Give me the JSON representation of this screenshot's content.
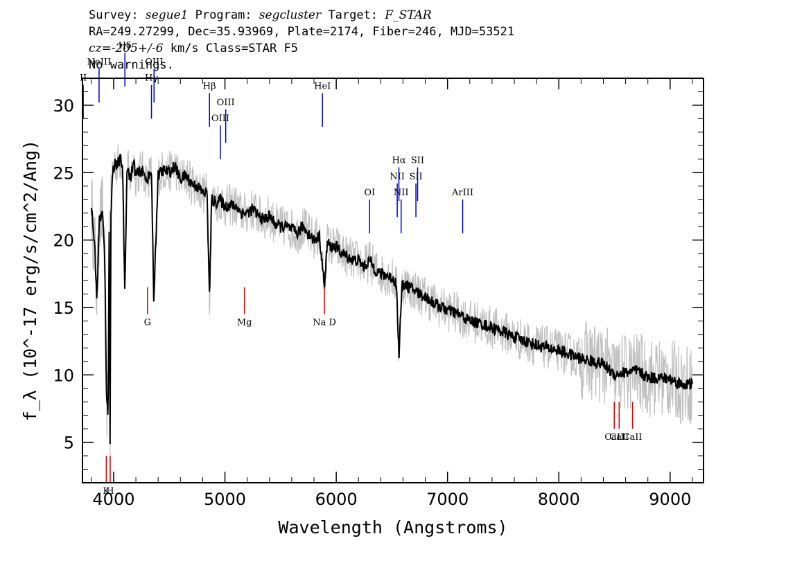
{
  "header": {
    "survey_label": "Survey:",
    "survey": "segue1",
    "program_label": "Program:",
    "program": "segcluster",
    "target_label": "Target:",
    "target": "F_STAR",
    "line2": "RA=249.27299, Dec=35.93969, Plate=2174, Fiber=246, MJD=53521",
    "cz_label": "cz=",
    "cz_value": "-205+/-6",
    "cz_unit_class": "km/s Class=STAR F5",
    "line4": "No warnings."
  },
  "chart_data": {
    "type": "line",
    "xlabel": "Wavelength (Angstroms)",
    "ylabel": "f_λ (10^-17 erg/s/cm^2/Ang)",
    "xlim": [
      3720,
      9300
    ],
    "ylim": [
      2,
      32
    ],
    "x_ticks": [
      4000,
      5000,
      6000,
      7000,
      8000,
      9000
    ],
    "y_ticks": [
      5,
      10,
      15,
      20,
      25,
      30
    ],
    "colors": {
      "spectrum": "#000000",
      "error_band": "#c0c0c0",
      "emission": "#0000cc",
      "absorption": "#dd0000"
    },
    "series": [
      {
        "x": [
          3800,
          3830,
          3850,
          3870,
          3900,
          3920,
          3935,
          3950,
          3960,
          3968,
          3975,
          3990,
          4010,
          4030,
          4060,
          4080,
          4101,
          4120,
          4150,
          4180,
          4200,
          4250,
          4300,
          4340,
          4360,
          4400,
          4450,
          4500,
          4550,
          4600,
          4650,
          4700,
          4750,
          4800,
          4840,
          4861,
          4880,
          4920,
          4960,
          5000,
          5050,
          5100,
          5150,
          5200,
          5250,
          5300,
          5350,
          5400,
          5450,
          5500,
          5550,
          5600,
          5650,
          5700,
          5750,
          5800,
          5850,
          5893,
          5920,
          5950,
          6000,
          6050,
          6100,
          6150,
          6200,
          6250,
          6300,
          6350,
          6400,
          6450,
          6500,
          6540,
          6563,
          6590,
          6620,
          6650,
          6700,
          6750,
          6800,
          6850,
          6900,
          6950,
          7000,
          7100,
          7200,
          7300,
          7400,
          7500,
          7600,
          7700,
          7800,
          7900,
          8000,
          8100,
          8200,
          8300,
          8400,
          8500,
          8600,
          8700,
          8800,
          8900,
          9000,
          9100,
          9200
        ],
        "values": [
          22.5,
          19.5,
          15.5,
          21.5,
          22.0,
          18.5,
          9.0,
          6.5,
          21.0,
          5.2,
          21.5,
          25.0,
          25.8,
          25.5,
          26.0,
          25.5,
          16.0,
          25.5,
          24.5,
          25.8,
          24.8,
          25.2,
          24.5,
          25.0,
          15.5,
          24.8,
          25.2,
          25.0,
          25.5,
          24.5,
          24.8,
          24.2,
          24.0,
          23.5,
          23.5,
          15.5,
          23.0,
          22.8,
          23.0,
          22.5,
          22.6,
          22.5,
          22.0,
          22.0,
          22.3,
          21.8,
          21.5,
          21.8,
          21.2,
          21.0,
          21.0,
          20.8,
          20.5,
          21.0,
          20.5,
          20.0,
          20.3,
          16.5,
          19.8,
          19.5,
          19.5,
          19.0,
          18.8,
          18.5,
          18.5,
          18.0,
          18.5,
          17.8,
          17.5,
          17.4,
          17.2,
          16.8,
          11.5,
          16.5,
          16.8,
          16.5,
          16.3,
          16.0,
          15.8,
          15.5,
          15.2,
          15.0,
          14.8,
          14.5,
          14.0,
          13.8,
          13.5,
          13.2,
          12.8,
          12.5,
          12.2,
          12.0,
          11.8,
          11.5,
          11.2,
          11.0,
          10.8,
          10.0,
          10.2,
          10.3,
          9.8,
          9.8,
          9.7,
          9.3,
          9.3
        ]
      }
    ],
    "emission_lines": [
      {
        "label": "II",
        "x": 3727
      },
      {
        "label": "NeIII",
        "x": 3869
      },
      {
        "label": "Hδ",
        "x": 4101
      },
      {
        "label": "Hγ",
        "x": 4340
      },
      {
        "label": "OIII",
        "x": 4363
      },
      {
        "label": "Hβ",
        "x": 4861
      },
      {
        "label": "OIII",
        "x": 4959
      },
      {
        "label": "OIII",
        "x": 5007
      },
      {
        "label": "HeI",
        "x": 5876
      },
      {
        "label": "OI",
        "x": 6300
      },
      {
        "label": "NII",
        "x": 6548
      },
      {
        "label": "Hα",
        "x": 6563
      },
      {
        "label": "NII",
        "x": 6583
      },
      {
        "label": "SII",
        "x": 6716
      },
      {
        "label": "SII",
        "x": 6731
      },
      {
        "label": "ArIII",
        "x": 7136
      }
    ],
    "absorption_lines": [
      {
        "label": "K",
        "x": 3934
      },
      {
        "label": "H",
        "x": 3969
      },
      {
        "label": "G",
        "x": 4304
      },
      {
        "label": "Mg",
        "x": 5175
      },
      {
        "label": "Na D",
        "x": 5894
      },
      {
        "label": "CaII",
        "x": 8498
      },
      {
        "label": "CaII",
        "x": 8542
      },
      {
        "label": "CaII",
        "x": 8662
      }
    ]
  }
}
